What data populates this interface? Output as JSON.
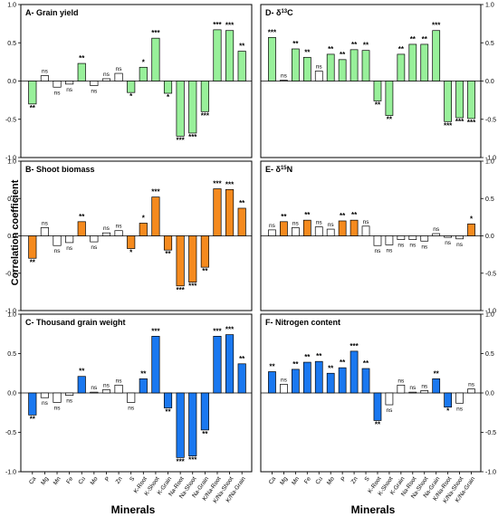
{
  "figure": {
    "ylabel": "Correlation coefficient",
    "xlabel_left": "Minerals",
    "xlabel_right": "Minerals"
  },
  "chart_data": [
    {
      "type": "bar",
      "title": "A- Grain yield",
      "color": "#98f09a",
      "ylim": [
        -1.0,
        1.0
      ],
      "yticks": [
        "-1.0",
        "-0.5",
        "0.0",
        "0.5",
        "1.0"
      ],
      "categories": [
        "Ca",
        "Mg",
        "Mn",
        "Fe",
        "Cu",
        "Mo",
        "P",
        "Zn",
        "S",
        "K-Root",
        "K-Shoot",
        "K-Grain",
        "Na-Root",
        "Na-Shoot",
        "Na-Grain",
        "K/Na-Root",
        "K/Na-Shoot",
        "K/Na-Grain"
      ],
      "values": [
        -0.3,
        0.07,
        -0.08,
        -0.04,
        0.23,
        -0.06,
        0.03,
        0.1,
        -0.15,
        0.18,
        0.56,
        -0.16,
        -0.72,
        -0.68,
        -0.4,
        0.67,
        0.66,
        0.39
      ],
      "significance": [
        "**",
        "ns",
        "ns",
        "ns",
        "**",
        "ns",
        "ns",
        "ns",
        "*",
        "*",
        "***",
        "*",
        "***",
        "***",
        "***",
        "***",
        "***",
        "**"
      ],
      "show_xticklabels": false
    },
    {
      "type": "bar",
      "title": "B- Shoot biomass",
      "color": "#f58a1e",
      "ylim": [
        -1.0,
        1.0
      ],
      "yticks": [
        "-1.0",
        "-0.5",
        "0.0",
        "0.5",
        "1.0"
      ],
      "categories": [
        "Ca",
        "Mg",
        "Mn",
        "Fe",
        "Cu",
        "Mo",
        "P",
        "Zn",
        "S",
        "K-Root",
        "K-Shoot",
        "K-Grain",
        "Na-Root",
        "Na-Shoot",
        "Na-Grain",
        "K/Na-Root",
        "K/Na-Shoot",
        "K/Na-Grain"
      ],
      "values": [
        -0.3,
        0.11,
        -0.13,
        -0.09,
        0.19,
        -0.08,
        0.04,
        0.07,
        -0.17,
        0.17,
        0.52,
        -0.19,
        -0.67,
        -0.62,
        -0.42,
        0.63,
        0.62,
        0.37
      ],
      "significance": [
        "**",
        "ns",
        "ns",
        "ns",
        "**",
        "ns",
        "ns",
        "ns",
        "*",
        "*",
        "***",
        "**",
        "***",
        "***",
        "**",
        "***",
        "***",
        "**"
      ],
      "show_xticklabels": false
    },
    {
      "type": "bar",
      "title": "C- Thousand grain weight",
      "color": "#1a78f0",
      "ylim": [
        -1.0,
        1.0
      ],
      "yticks": [
        "-1.0",
        "-0.5",
        "0.0",
        "0.5",
        "1.0"
      ],
      "categories": [
        "Ca",
        "Mg",
        "Mn",
        "Fe",
        "Cu",
        "Mo",
        "P",
        "Zn",
        "S",
        "K-Root",
        "K-Shoot",
        "K-Grain",
        "Na-Root",
        "Na-Shoot",
        "Na-Grain",
        "K/Na-Root",
        "K/Na-Shoot",
        "K/Na-Grain"
      ],
      "values": [
        -0.28,
        -0.06,
        -0.12,
        -0.03,
        0.21,
        0.01,
        0.04,
        0.1,
        -0.12,
        0.18,
        0.72,
        -0.19,
        -0.82,
        -0.8,
        -0.47,
        0.72,
        0.74,
        0.37
      ],
      "significance": [
        "**",
        "ns",
        "ns",
        "ns",
        "**",
        "ns",
        "ns",
        "ns",
        "ns",
        "**",
        "***",
        "**",
        "***",
        "***",
        "**",
        "***",
        "***",
        "**"
      ],
      "show_xticklabels": true
    },
    {
      "type": "bar",
      "title": "D- δ13C",
      "color": "#98f09a",
      "ylim": [
        -1.0,
        1.0
      ],
      "yticks": [
        "-1.0",
        "-0.5",
        "0.0",
        "0.5",
        "1.0"
      ],
      "categories": [
        "Ca",
        "Mg",
        "Mn",
        "Fe",
        "Cu",
        "Mo",
        "P",
        "Zn",
        "S",
        "K-Root",
        "K-Shoot",
        "K-Grain",
        "Na-Root",
        "Na-Shoot",
        "Na-Grain",
        "K/Na-Root",
        "K/Na-Shoot",
        "K/Na-Grain"
      ],
      "values": [
        0.57,
        0.01,
        0.42,
        0.31,
        0.13,
        0.35,
        0.28,
        0.41,
        0.4,
        -0.26,
        -0.45,
        0.35,
        0.48,
        0.48,
        0.66,
        -0.53,
        -0.48,
        -0.49
      ],
      "significance": [
        "***",
        "ns",
        "**",
        "**",
        "ns",
        "**",
        "**",
        "**",
        "**",
        "**",
        "**",
        "**",
        "**",
        "**",
        "***",
        "***",
        "***",
        "***"
      ],
      "show_xticklabels": false
    },
    {
      "type": "bar",
      "title": "E- δ15N",
      "color": "#f58a1e",
      "ylim": [
        -1.0,
        1.0
      ],
      "yticks": [
        "-1.0",
        "-0.5",
        "0.0",
        "0.5",
        "1.0"
      ],
      "categories": [
        "Ca",
        "Mg",
        "Mn",
        "Fe",
        "Cu",
        "Mo",
        "P",
        "Zn",
        "S",
        "K-Root",
        "K-Shoot",
        "K-Grain",
        "Na-Root",
        "Na-Shoot",
        "Na-Grain",
        "K/Na-Root",
        "K/Na-Shoot",
        "K/Na-Grain"
      ],
      "values": [
        0.08,
        0.19,
        0.11,
        0.21,
        0.12,
        0.09,
        0.2,
        0.21,
        0.13,
        -0.13,
        -0.12,
        -0.05,
        -0.05,
        -0.07,
        0.03,
        -0.02,
        -0.04,
        0.16
      ],
      "significance": [
        "ns",
        "**",
        "ns",
        "**",
        "ns",
        "ns",
        "**",
        "**",
        "ns",
        "ns",
        "ns",
        "ns",
        "ns",
        "ns",
        "ns",
        "ns",
        "ns",
        "*"
      ],
      "show_xticklabels": false
    },
    {
      "type": "bar",
      "title": "F- Nitrogen content",
      "color": "#1a78f0",
      "ylim": [
        -1.0,
        1.0
      ],
      "yticks": [
        "-1.0",
        "-0.5",
        "0.0",
        "0.5",
        "1.0"
      ],
      "categories": [
        "Ca",
        "Mg",
        "Mn",
        "Fe",
        "Cu",
        "Mo",
        "P",
        "Zn",
        "S",
        "K-Root",
        "K-Shoot",
        "K-Grain",
        "Na-Root",
        "Na-Shoot",
        "Na-Grain",
        "K/Na-Root",
        "K/Na-Shoot",
        "K/Na-Grain"
      ],
      "values": [
        0.27,
        0.11,
        0.3,
        0.39,
        0.4,
        0.25,
        0.32,
        0.53,
        0.31,
        -0.35,
        -0.15,
        0.1,
        0.01,
        0.03,
        0.18,
        -0.18,
        -0.13,
        0.05
      ],
      "significance": [
        "**",
        "ns",
        "**",
        "**",
        "**",
        "**",
        "**",
        "***",
        "**",
        "**",
        "ns",
        "ns",
        "ns",
        "ns",
        "**",
        "*",
        "ns",
        "ns"
      ],
      "show_xticklabels": true
    }
  ]
}
